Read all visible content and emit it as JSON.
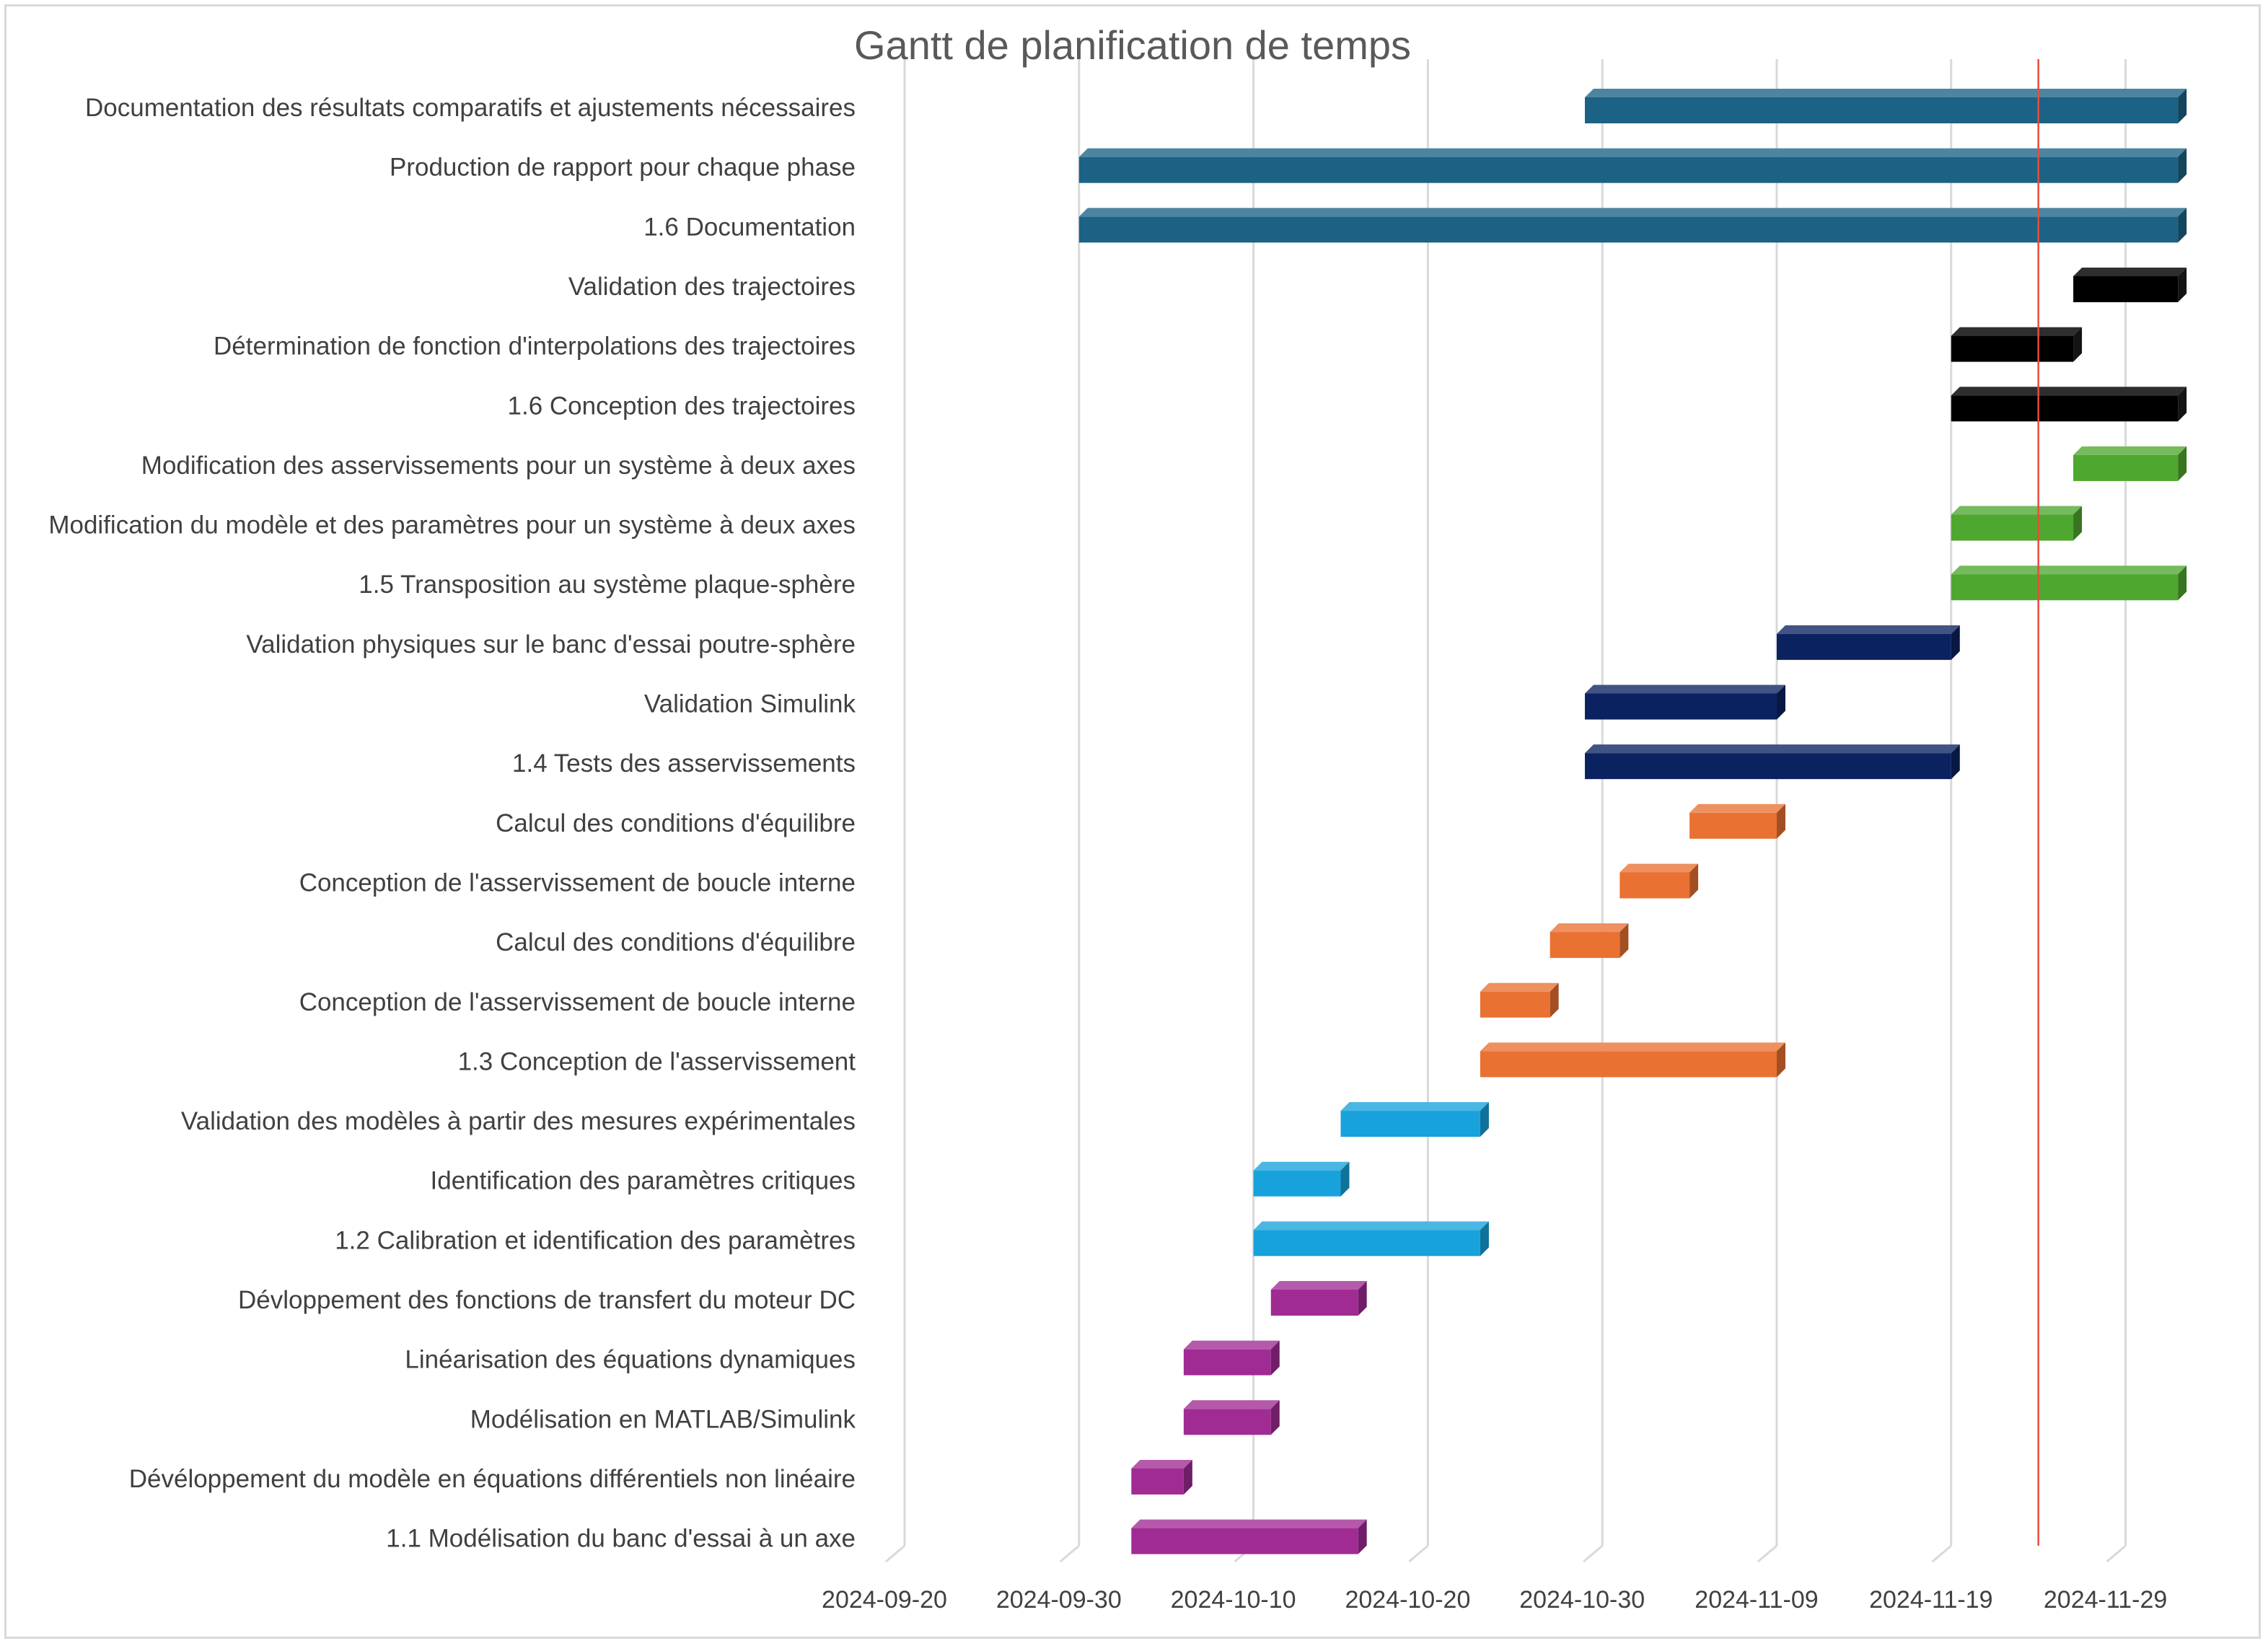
{
  "chart_data": {
    "type": "bar",
    "orientation": "horizontal",
    "title": "Gantt de planification de temps",
    "xlabel": "",
    "ylabel": "",
    "x_axis": {
      "min": "2024-09-20",
      "max": "2024-12-04",
      "step_days": 10,
      "tick_labels": [
        "2024-09-20",
        "2024-09-30",
        "2024-10-10",
        "2024-10-20",
        "2024-10-30",
        "2024-11-09",
        "2024-11-19",
        "2024-11-29"
      ]
    },
    "grid": true,
    "legend": "none",
    "today_marker": "2024-11-24",
    "today_color": "#E74C3C",
    "tasks": [
      {
        "label": "Documentation des résultats comparatifs et ajustements nécessaires",
        "start": "2024-10-29",
        "end": "2024-12-02",
        "color": "#1B6285"
      },
      {
        "label": "Production de rapport pour chaque phase",
        "start": "2024-09-30",
        "end": "2024-12-02",
        "color": "#1B6285"
      },
      {
        "label": "1.6 Documentation",
        "start": "2024-09-30",
        "end": "2024-12-02",
        "color": "#1B6285"
      },
      {
        "label": "Validation des trajectoires",
        "start": "2024-11-26",
        "end": "2024-12-02",
        "color": "#000000"
      },
      {
        "label": "Détermination de fonction d'interpolations des trajectoires",
        "start": "2024-11-19",
        "end": "2024-11-26",
        "color": "#000000"
      },
      {
        "label": "1.6 Conception des trajectoires",
        "start": "2024-11-19",
        "end": "2024-12-02",
        "color": "#000000"
      },
      {
        "label": "Modification des asservissements pour un système à deux axes ",
        "start": "2024-11-26",
        "end": "2024-12-02",
        "color": "#4EA72E"
      },
      {
        "label": "Modification du modèle et des paramètres pour un système à deux axes",
        "start": "2024-11-19",
        "end": "2024-11-26",
        "color": "#4EA72E"
      },
      {
        "label": "1.5 Transposition au système plaque-sphère",
        "start": "2024-11-19",
        "end": "2024-12-02",
        "color": "#4EA72E"
      },
      {
        "label": "Validation physiques sur le banc d'essai poutre-sphère",
        "start": "2024-11-09",
        "end": "2024-11-19",
        "color": "#0B2260"
      },
      {
        "label": "Validation Simulink",
        "start": "2024-10-29",
        "end": "2024-11-09",
        "color": "#0B2260"
      },
      {
        "label": "1.4 Tests des asservissements",
        "start": "2024-10-29",
        "end": "2024-11-19",
        "color": "#0B2260"
      },
      {
        "label": "Calcul des conditions d'équilibre",
        "start": "2024-11-04",
        "end": "2024-11-09",
        "color": "#E97132"
      },
      {
        "label": "Conception de l'asservissement de boucle interne",
        "start": "2024-10-31",
        "end": "2024-11-04",
        "color": "#E97132"
      },
      {
        "label": "Calcul des conditions d'équilibre",
        "start": "2024-10-27",
        "end": "2024-10-31",
        "color": "#E97132"
      },
      {
        "label": "Conception de l'asservissement de boucle interne",
        "start": "2024-10-23",
        "end": "2024-10-27",
        "color": "#E97132"
      },
      {
        "label": "1.3 Conception de l'asservissement",
        "start": "2024-10-23",
        "end": "2024-11-09",
        "color": "#E97132"
      },
      {
        "label": "Validation des modèles à partir des mesures expérimentales",
        "start": "2024-10-15",
        "end": "2024-10-23",
        "color": "#17A2DC"
      },
      {
        "label": "Identification des paramètres critiques",
        "start": "2024-10-10",
        "end": "2024-10-15",
        "color": "#17A2DC"
      },
      {
        "label": "1.2 Calibration et identification des paramètres",
        "start": "2024-10-10",
        "end": "2024-10-23",
        "color": "#17A2DC"
      },
      {
        "label": "Dévloppement des fonctions de transfert du moteur DC",
        "start": "2024-10-11",
        "end": "2024-10-16",
        "color": "#A02B93"
      },
      {
        "label": "Linéarisation des équations dynamiques",
        "start": "2024-10-06",
        "end": "2024-10-11",
        "color": "#A02B93"
      },
      {
        "label": "Modélisation en MATLAB/Simulink",
        "start": "2024-10-06",
        "end": "2024-10-11",
        "color": "#A02B93"
      },
      {
        "label": "Dévéloppement du modèle en équations différentiels non linéaire",
        "start": "2024-10-03",
        "end": "2024-10-06",
        "color": "#A02B93"
      },
      {
        "label": "1.1 Modélisation du banc d'essai à un axe",
        "start": "2024-10-03",
        "end": "2024-10-16",
        "color": "#A02B93"
      }
    ]
  }
}
